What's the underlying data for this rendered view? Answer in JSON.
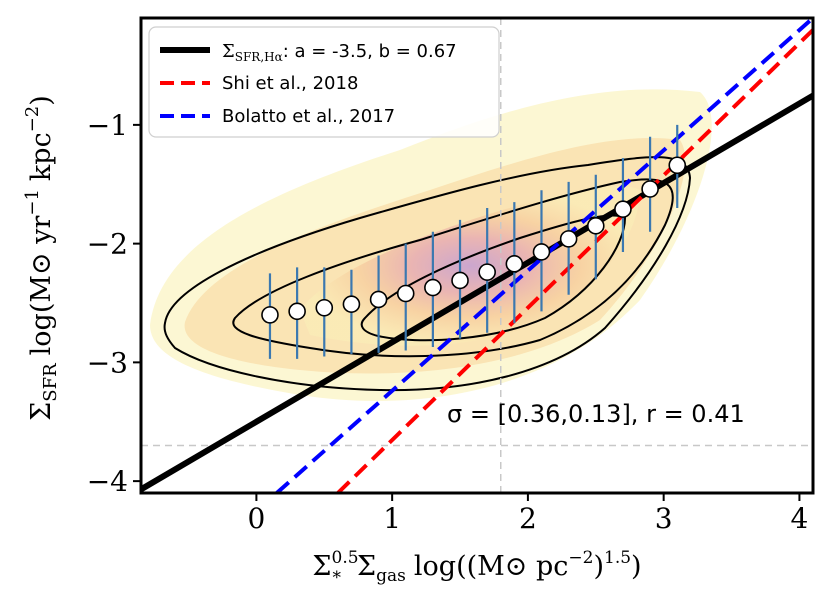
{
  "chart_data": {
    "type": "scatter",
    "xlabel": "Σ*^0.5 Σgas log((M⊙ pc^-2)^1.5)",
    "ylabel": "ΣSFR log(M⊙ yr^-1 kpc^-2)",
    "xlim": [
      -0.85,
      4.1
    ],
    "ylim": [
      -4.1,
      -0.1
    ],
    "x_ticks": [
      0,
      1,
      2,
      3,
      4
    ],
    "y_ticks": [
      -4,
      -3,
      -2,
      -1
    ],
    "x_tick_labels": [
      "0",
      "1",
      "2",
      "3",
      "4"
    ],
    "y_tick_labels": [
      "−4",
      "−3",
      "−2",
      "−1"
    ],
    "grid": false,
    "legend_placement": "top-left",
    "colors": {
      "fit_line": "#000000",
      "shi_line": "#ff0000",
      "bolatto_line": "#0000ff",
      "error_bars": "#3b78b0",
      "ref_lines": "#c8c8c8"
    },
    "series": [
      {
        "name": "ΣSFR,Hα: a = -3.5, b = 0.67",
        "style": "solid",
        "intercept": -3.5,
        "slope": 0.67
      },
      {
        "name": "Shi et al., 2018",
        "style": "dashed",
        "points": [
          [
            0.6,
            -4.1
          ],
          [
            4.1,
            -0.2
          ]
        ]
      },
      {
        "name": "Bolatto et al., 2017",
        "style": "dashed",
        "points": [
          [
            0.15,
            -4.1
          ],
          [
            4.1,
            -0.1
          ]
        ]
      }
    ],
    "binned_medians": {
      "x": [
        0.1,
        0.3,
        0.5,
        0.7,
        0.9,
        1.1,
        1.3,
        1.5,
        1.7,
        1.9,
        2.1,
        2.3,
        2.5,
        2.7,
        2.9,
        3.1
      ],
      "y": [
        -2.6,
        -2.57,
        -2.54,
        -2.51,
        -2.47,
        -2.42,
        -2.37,
        -2.31,
        -2.24,
        -2.17,
        -2.07,
        -1.96,
        -1.85,
        -1.71,
        -1.54,
        -1.34
      ],
      "y_low": [
        -2.97,
        -2.97,
        -2.95,
        -2.93,
        -2.92,
        -2.9,
        -2.87,
        -2.8,
        -2.75,
        -2.67,
        -2.57,
        -2.43,
        -2.3,
        -2.07,
        -1.9,
        -1.7
      ],
      "y_high": [
        -2.25,
        -2.2,
        -2.2,
        -2.22,
        -2.1,
        -2.0,
        -1.9,
        -1.8,
        -1.7,
        -1.65,
        -1.55,
        -1.48,
        -1.42,
        -1.28,
        -1.1,
        -1.0
      ]
    },
    "reference_lines": {
      "vertical_x": 1.8,
      "horizontal_y": -3.7
    },
    "annotation": "σ = [0.36,0.13], r = 0.41"
  },
  "labels": {
    "ylabel_main": "Σ",
    "ylabel_sub": "SFR",
    "ylabel_units": "log(M⊙ yr",
    "ylabel_exp1": "−1",
    "ylabel_mid": "kpc",
    "ylabel_exp2": "−2",
    "ylabel_close": ")",
    "xlabel_s1": "Σ",
    "xlabel_s1_sup": "0.5",
    "xlabel_s1_sub": "*",
    "xlabel_s2": "Σ",
    "xlabel_s2_sub": "gas",
    "xlabel_units": "log((M⊙ pc",
    "xlabel_exp": "−2",
    "xlabel_close": ")",
    "xlabel_exp2": "1.5",
    "xlabel_close2": ")",
    "legend_1_prefix": "Σ",
    "legend_1_sub": "SFR,Hα",
    "legend_1_rest": ": a = -3.5, b = 0.67",
    "legend_2": "Shi et al., 2018",
    "legend_3": "Bolatto et al., 2017"
  }
}
